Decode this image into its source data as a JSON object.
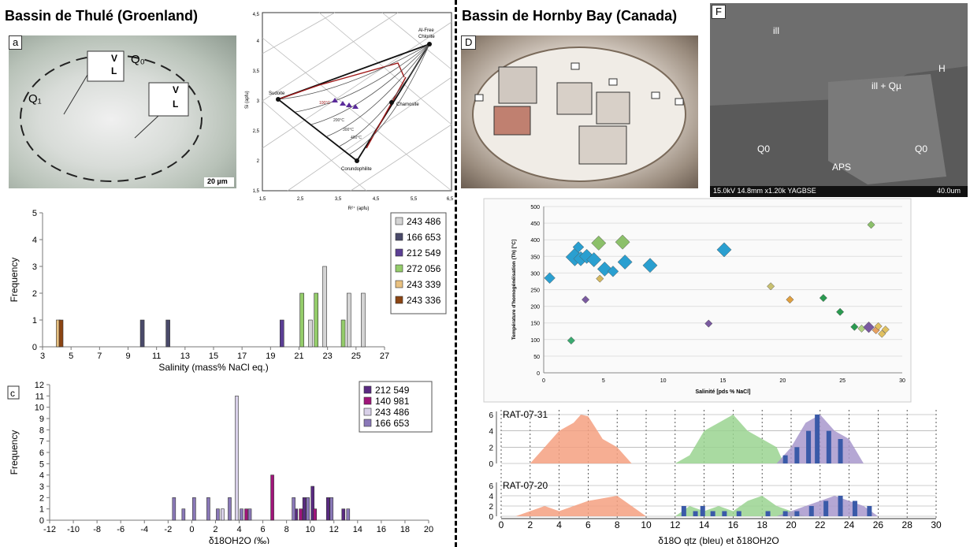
{
  "titles": {
    "left": "Bassin de Thulé (Groenland)",
    "right": "Bassin de Hornby Bay (Canada)"
  },
  "photos": {
    "a": {
      "letter": "a",
      "q0": "Q₀",
      "q1": "Q₁",
      "v": "V",
      "l": "L",
      "scale": "20 µm"
    },
    "d": {
      "letter": "D"
    },
    "f": {
      "letter": "F",
      "ill": "ill",
      "ill_qu": "ill + Qµ",
      "h": "H",
      "q0": "Q0",
      "aps": "APS",
      "footer": "15.0kV 14.8mm x1.20k YAGBSE",
      "scale": "40.0um"
    }
  },
  "ternary": {
    "xlabel": "R²⁺ (apfu)",
    "ylabel": "Si (apfu)",
    "xticks": [
      "1,5",
      "2,5",
      "3,5",
      "4,5",
      "5,5",
      "6,5"
    ],
    "yticks": [
      "1,5",
      "2",
      "2,5",
      "3",
      "3,5",
      "4",
      "4,5"
    ],
    "vertices": {
      "sudoite": "Sudoite",
      "chamosite": "Chamosite",
      "corundophilite": "Corundophilite",
      "al_free": "Al-Free",
      "chlorite": "Chlorite"
    },
    "isotherms": [
      "100°C",
      "200°C",
      "300°C",
      "400°C"
    ]
  },
  "chart_data": [
    {
      "type": "bar",
      "panel": "b",
      "xlabel": "Salinity (mass% NaCl eq.)",
      "ylabel": "Frequency",
      "xlim": [
        3,
        27
      ],
      "ylim": [
        0,
        5
      ],
      "xticks": [
        3,
        5,
        7,
        9,
        11,
        13,
        15,
        17,
        19,
        21,
        23,
        25,
        27
      ],
      "yticks": [
        0,
        1,
        2,
        3,
        4,
        5
      ],
      "series": [
        {
          "name": "243 486",
          "color": "#d4d4d4",
          "points": [
            [
              21.8,
              1
            ],
            [
              22.8,
              3
            ],
            [
              24.5,
              2
            ],
            [
              25.5,
              2
            ]
          ]
        },
        {
          "name": "166 653",
          "color": "#4a4a6a",
          "points": [
            [
              10,
              1
            ],
            [
              11.8,
              1
            ]
          ]
        },
        {
          "name": "212 549",
          "color": "#5b3e94",
          "points": [
            [
              19.8,
              1
            ]
          ]
        },
        {
          "name": "272 056",
          "color": "#94cc6a",
          "points": [
            [
              21.2,
              2
            ],
            [
              22.2,
              2
            ],
            [
              24.1,
              1
            ]
          ]
        },
        {
          "name": "243 339",
          "color": "#e8c080",
          "points": [
            [
              4.1,
              1
            ]
          ]
        },
        {
          "name": "243 336",
          "color": "#8b4513",
          "points": [
            [
              4.3,
              1
            ]
          ]
        }
      ]
    },
    {
      "type": "bar",
      "panel": "c",
      "letter": "c",
      "xlabel": "δ¹⁸O<sub>H2O</sub> (‰)",
      "xlabel_text": "δ18OH2O (‰)",
      "ylabel": "Frequency",
      "xlim": [
        -12,
        20
      ],
      "ylim": [
        0,
        12
      ],
      "xticks": [
        -12,
        -10,
        -8,
        -6,
        -4,
        -2,
        0,
        2,
        4,
        6,
        8,
        10,
        12,
        14,
        16,
        18,
        20
      ],
      "yticks": [
        0,
        1,
        2,
        3,
        4,
        5,
        6,
        7,
        8,
        9,
        10,
        11,
        12
      ],
      "series": [
        {
          "name": "212 549",
          "color": "#5a2a82",
          "points": [
            [
              8.8,
              1
            ],
            [
              9.5,
              2
            ],
            [
              10.2,
              3
            ],
            [
              11.5,
              2
            ],
            [
              12.8,
              1
            ]
          ]
        },
        {
          "name": "140 981",
          "color": "#a0157a",
          "points": [
            [
              4.6,
              1
            ],
            [
              6.8,
              4
            ],
            [
              9.2,
              1
            ],
            [
              10.4,
              1
            ]
          ]
        },
        {
          "name": "243 486",
          "color": "#d8d0e8",
          "points": [
            [
              3.8,
              11
            ],
            [
              2.6,
              1
            ]
          ]
        },
        {
          "name": "166 653",
          "color": "#8a78b8",
          "points": [
            [
              -1.5,
              2
            ],
            [
              -0.7,
              1
            ],
            [
              0.2,
              2
            ],
            [
              1.4,
              2
            ],
            [
              2.2,
              1
            ],
            [
              3.2,
              2
            ],
            [
              4.2,
              1
            ],
            [
              4.9,
              1
            ],
            [
              8.6,
              2
            ],
            [
              9.8,
              2
            ],
            [
              11.8,
              2
            ],
            [
              13.2,
              1
            ]
          ]
        }
      ]
    },
    {
      "type": "scatter",
      "panel": "e",
      "xlabel": "Salinité [pds % NaCl]",
      "ylabel": "Température d'homogénéisation (Th) [°C]",
      "xlim": [
        0,
        30
      ],
      "ylim": [
        0,
        500
      ],
      "xticks": [
        0,
        5,
        10,
        15,
        20,
        25,
        30
      ],
      "yticks": [
        0,
        50,
        100,
        150,
        200,
        250,
        300,
        350,
        400,
        450,
        500
      ],
      "points": [
        {
          "x": 0.5,
          "y": 285,
          "s": 2,
          "c": "#2a9fd0"
        },
        {
          "x": 2.6,
          "y": 348,
          "s": 4,
          "c": "#2a9fd0"
        },
        {
          "x": 2.9,
          "y": 378,
          "s": 2,
          "c": "#2a9fd0"
        },
        {
          "x": 3.1,
          "y": 343,
          "s": 3,
          "c": "#2a9fd0"
        },
        {
          "x": 3.6,
          "y": 350,
          "s": 3,
          "c": "#2a9fd0"
        },
        {
          "x": 4.2,
          "y": 340,
          "s": 3,
          "c": "#2a9fd0"
        },
        {
          "x": 5.1,
          "y": 312,
          "s": 3,
          "c": "#2a9fd0"
        },
        {
          "x": 5.8,
          "y": 305,
          "s": 2,
          "c": "#2a9fd0"
        },
        {
          "x": 6.8,
          "y": 333,
          "s": 3,
          "c": "#2a9fd0"
        },
        {
          "x": 8.9,
          "y": 323,
          "s": 3,
          "c": "#2a9fd0"
        },
        {
          "x": 15.1,
          "y": 370,
          "s": 3,
          "c": "#2a9fd0"
        },
        {
          "x": 4.6,
          "y": 390,
          "s": 3,
          "c": "#8cc06a"
        },
        {
          "x": 6.6,
          "y": 393,
          "s": 3,
          "c": "#8cc06a"
        },
        {
          "x": 4.7,
          "y": 283,
          "s": 1,
          "c": "#d4b860"
        },
        {
          "x": 3.5,
          "y": 220,
          "s": 1,
          "c": "#7a5aa0"
        },
        {
          "x": 2.3,
          "y": 97,
          "s": 1,
          "c": "#3aaa70"
        },
        {
          "x": 13.8,
          "y": 148,
          "s": 1,
          "c": "#7a5aa0"
        },
        {
          "x": 19.0,
          "y": 260,
          "s": 1,
          "c": "#c8c070"
        },
        {
          "x": 20.6,
          "y": 220,
          "s": 1,
          "c": "#e0a040"
        },
        {
          "x": 23.4,
          "y": 225,
          "s": 1,
          "c": "#2a9a50"
        },
        {
          "x": 24.8,
          "y": 183,
          "s": 1,
          "c": "#2a9a50"
        },
        {
          "x": 26.0,
          "y": 138,
          "s": 1,
          "c": "#2a9a50"
        },
        {
          "x": 26.6,
          "y": 133,
          "s": 1,
          "c": "#b0d080"
        },
        {
          "x": 27.2,
          "y": 137,
          "s": 2,
          "c": "#7a5aa0"
        },
        {
          "x": 27.4,
          "y": 445,
          "s": 1,
          "c": "#8cc06a"
        },
        {
          "x": 27.8,
          "y": 128,
          "s": 1,
          "c": "#e8a060"
        },
        {
          "x": 28.0,
          "y": 140,
          "s": 1,
          "c": "#e0c060"
        },
        {
          "x": 28.3,
          "y": 117,
          "s": 1,
          "c": "#e0c060"
        },
        {
          "x": 28.6,
          "y": 130,
          "s": 1,
          "c": "#e0c060"
        }
      ]
    },
    {
      "type": "area",
      "panel": "g",
      "xlabel": "δ18O qtz (bleu) et δ18OH2O",
      "xlim": [
        0,
        30
      ],
      "ylim": [
        0,
        6
      ],
      "xticks": [
        0,
        2,
        4,
        6,
        8,
        10,
        12,
        14,
        16,
        18,
        20,
        22,
        24,
        26,
        28,
        30
      ],
      "yticks": [
        0,
        2,
        4,
        6
      ],
      "rows": [
        {
          "name": "RAT-07-31",
          "areas": [
            {
              "color": "#f4a080",
              "points": [
                [
                  2,
                  0
                ],
                [
                  3,
                  2
                ],
                [
                  4,
                  4
                ],
                [
                  5,
                  5
                ],
                [
                  5.5,
                  6
                ],
                [
                  6,
                  5.8
                ],
                [
                  7,
                  3
                ],
                [
                  8,
                  2
                ],
                [
                  9,
                  0
                ]
              ]
            },
            {
              "color": "#9ad490",
              "points": [
                [
                  12,
                  0
                ],
                [
                  13,
                  1
                ],
                [
                  14,
                  4
                ],
                [
                  15,
                  5
                ],
                [
                  16,
                  6
                ],
                [
                  17,
                  4
                ],
                [
                  18,
                  3
                ],
                [
                  19,
                  2
                ],
                [
                  19.5,
                  0
                ]
              ]
            },
            {
              "color": "#a898cc",
              "points": [
                [
                  19,
                  0
                ],
                [
                  20,
                  2
                ],
                [
                  21,
                  5
                ],
                [
                  22,
                  6
                ],
                [
                  23,
                  4
                ],
                [
                  24,
                  3
                ],
                [
                  25,
                  0
                ]
              ]
            }
          ],
          "bars": [
            [
              19.6,
              1
            ],
            [
              20.4,
              2
            ],
            [
              21.2,
              4
            ],
            [
              21.8,
              6
            ],
            [
              22.6,
              4
            ],
            [
              23.4,
              3
            ]
          ]
        },
        {
          "name": "RAT-07-20",
          "areas": [
            {
              "color": "#f4a080",
              "points": [
                [
                  1,
                  0
                ],
                [
                  2,
                  1
                ],
                [
                  3,
                  2
                ],
                [
                  4,
                  1
                ],
                [
                  5,
                  2
                ],
                [
                  6,
                  3
                ],
                [
                  7,
                  3.5
                ],
                [
                  8,
                  4
                ],
                [
                  9,
                  2
                ],
                [
                  10,
                  0
                ]
              ]
            },
            {
              "color": "#9ad490",
              "points": [
                [
                  12,
                  0
                ],
                [
                  13,
                  2
                ],
                [
                  14,
                  1
                ],
                [
                  15,
                  2
                ],
                [
                  16,
                  1
                ],
                [
                  17,
                  3
                ],
                [
                  18,
                  4
                ],
                [
                  19,
                  2
                ],
                [
                  20,
                  1
                ],
                [
                  21,
                  0
                ]
              ]
            },
            {
              "color": "#a898cc",
              "points": [
                [
                  19,
                  0
                ],
                [
                  20,
                  1
                ],
                [
                  21,
                  2
                ],
                [
                  22,
                  3
                ],
                [
                  23,
                  4
                ],
                [
                  24,
                  3
                ],
                [
                  25,
                  2
                ],
                [
                  26,
                  0
                ]
              ]
            }
          ],
          "bars": [
            [
              12.6,
              2
            ],
            [
              13.4,
              1
            ],
            [
              13.9,
              2
            ],
            [
              14.6,
              1
            ],
            [
              15.4,
              1
            ],
            [
              16.4,
              1
            ],
            [
              18.4,
              1
            ],
            [
              19.6,
              1
            ],
            [
              20.4,
              1
            ],
            [
              21.4,
              2
            ],
            [
              22.4,
              3
            ],
            [
              23.4,
              4
            ],
            [
              24.4,
              3
            ],
            [
              25.4,
              2
            ]
          ]
        }
      ]
    }
  ]
}
